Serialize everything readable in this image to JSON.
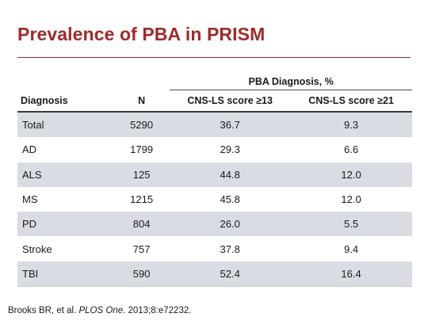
{
  "title": "Prevalence of PBA in PRISM",
  "table": {
    "group_header": "PBA Diagnosis, %",
    "columns": [
      "Diagnosis",
      "N",
      "CNS-LS score ≥13",
      "CNS-LS score ≥21"
    ],
    "rows": [
      {
        "diagnosis": "Total",
        "n": "5290",
        "score13": "36.7",
        "score21": "9.3"
      },
      {
        "diagnosis": "AD",
        "n": "1799",
        "score13": "29.3",
        "score21": "6.6"
      },
      {
        "diagnosis": "ALS",
        "n": "125",
        "score13": "44.8",
        "score21": "12.0"
      },
      {
        "diagnosis": "MS",
        "n": "1215",
        "score13": "45.8",
        "score21": "12.0"
      },
      {
        "diagnosis": "PD",
        "n": "804",
        "score13": "26.0",
        "score21": "5.5"
      },
      {
        "diagnosis": "Stroke",
        "n": "757",
        "score13": "37.8",
        "score21": "9.4"
      },
      {
        "diagnosis": "TBI",
        "n": "590",
        "score13": "52.4",
        "score21": "16.4"
      }
    ]
  },
  "citation": {
    "prefix": "Brooks BR, et al. ",
    "journal": "PLOS One",
    "suffix": ". 2013;8:e72232."
  },
  "colors": {
    "title": "#a02a2a",
    "row_shade": "#d9dde3"
  }
}
